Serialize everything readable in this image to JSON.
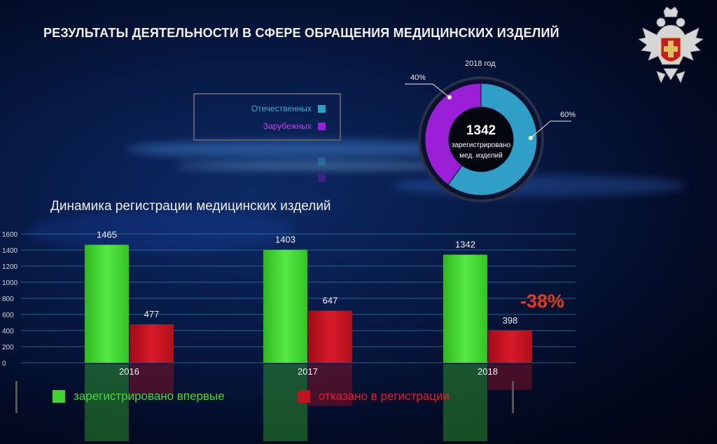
{
  "title": "РЕЗУЛЬТАТЫ ДЕЯТЕЛЬНОСТИ В СФЕРЕ ОБРАЩЕНИЯ МЕДИЦИНСКИХ ИЗДЕЛИЙ",
  "emblem": {
    "icon": "double-headed-eagle-emblem-icon"
  },
  "colors": {
    "domestic": "#2f9fc8",
    "foreign": "#9b1fd6",
    "registered": "#3fd42f",
    "refused": "#c4101f",
    "decline": "#e53a1a"
  },
  "donut_legend": {
    "items": [
      {
        "label": "Отечественных",
        "color": "#2f9fc8",
        "text_color": "#3aaed6"
      },
      {
        "label": "Зарубежных",
        "color": "#9b1fd6",
        "text_color": "#c045e8"
      }
    ]
  },
  "bar_legend": {
    "items": [
      {
        "label": "зарегистрировано впервые",
        "color": "#3fd42f",
        "text_color": "#49d83a"
      },
      {
        "label": "отказано в регистрации",
        "color": "#c4101f",
        "text_color": "#e0202c"
      }
    ]
  },
  "chart_data": [
    {
      "type": "pie",
      "title": "2018 год",
      "center_value": "1342",
      "center_label_line1": "зарегистрировано",
      "center_label_line2": "мед. изделий",
      "slices": [
        {
          "label": "Отечественных",
          "value": 60,
          "value_label": "60%",
          "color": "#2f9fc8"
        },
        {
          "label": "Зарубежных",
          "value": 40,
          "value_label": "40%",
          "color": "#9b1fd6"
        }
      ]
    },
    {
      "type": "bar",
      "title": "Динамика регистрации медицинских изделий",
      "categories": [
        "2016",
        "2017",
        "2018"
      ],
      "series": [
        {
          "name": "зарегистрировано впервые",
          "values": [
            1465,
            1403,
            1342
          ],
          "color": "#3fd42f"
        },
        {
          "name": "отказано в регистрации",
          "values": [
            477,
            647,
            398
          ],
          "color": "#c4101f"
        }
      ],
      "yticks": [
        "0",
        "200",
        "400",
        "600",
        "800",
        "1000",
        "1200",
        "1400",
        "1600"
      ],
      "ylim": [
        0,
        1600
      ],
      "grid": true,
      "annotation": "-38%"
    }
  ]
}
